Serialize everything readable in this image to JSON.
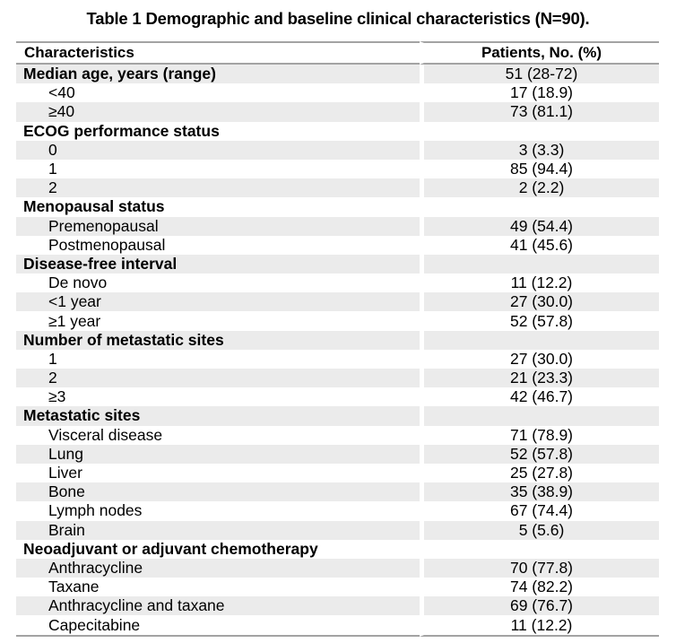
{
  "title": "Table 1 Demographic and baseline clinical characteristics (N=90).",
  "table": {
    "columns": {
      "characteristics": "Characteristics",
      "patients": "Patients, No. (%)"
    },
    "rows": [
      {
        "label": "Median age, years (range)",
        "value": "51 (28-72)",
        "style": "section"
      },
      {
        "label": "<40",
        "value": "17 (18.9)",
        "style": "item"
      },
      {
        "label": "≥40",
        "value": "73 (81.1)",
        "style": "item"
      },
      {
        "label": "ECOG performance status",
        "value": "",
        "style": "section"
      },
      {
        "label": "0",
        "value": "3 (3.3)",
        "style": "item"
      },
      {
        "label": "1",
        "value": "85 (94.4)",
        "style": "item"
      },
      {
        "label": "2",
        "value": "2 (2.2)",
        "style": "item"
      },
      {
        "label": "Menopausal status",
        "value": "",
        "style": "section"
      },
      {
        "label": "Premenopausal",
        "value": "49 (54.4)",
        "style": "item"
      },
      {
        "label": "Postmenopausal",
        "value": "41 (45.6)",
        "style": "item"
      },
      {
        "label": "Disease-free interval",
        "value": "",
        "style": "section"
      },
      {
        "label": "De novo",
        "value": "11 (12.2)",
        "style": "item"
      },
      {
        "label": "<1 year",
        "value": "27 (30.0)",
        "style": "item"
      },
      {
        "label": "≥1 year",
        "value": "52 (57.8)",
        "style": "item"
      },
      {
        "label": "Number of metastatic sites",
        "value": "",
        "style": "section"
      },
      {
        "label": "1",
        "value": "27 (30.0)",
        "style": "item"
      },
      {
        "label": "2",
        "value": "21 (23.3)",
        "style": "item"
      },
      {
        "label": "≥3",
        "value": "42 (46.7)",
        "style": "item"
      },
      {
        "label": "Metastatic sites",
        "value": "",
        "style": "section"
      },
      {
        "label": "Visceral disease",
        "value": "71 (78.9)",
        "style": "item"
      },
      {
        "label": "Lung",
        "value": "52 (57.8)",
        "style": "item"
      },
      {
        "label": "Liver",
        "value": "25 (27.8)",
        "style": "item"
      },
      {
        "label": "Bone",
        "value": "35 (38.9)",
        "style": "item"
      },
      {
        "label": "Lymph nodes",
        "value": "67 (74.4)",
        "style": "item"
      },
      {
        "label": "Brain",
        "value": "5 (5.6)",
        "style": "item"
      },
      {
        "label": "Neoadjuvant or adjuvant chemotherapy",
        "value": "",
        "style": "section"
      },
      {
        "label": "Anthracycline",
        "value": "70 (77.8)",
        "style": "item"
      },
      {
        "label": "Taxane",
        "value": "74 (82.2)",
        "style": "item"
      },
      {
        "label": "Anthracycline and taxane",
        "value": "69 (76.7)",
        "style": "item"
      },
      {
        "label": "Capecitabine",
        "value": "11 (12.2)",
        "style": "item"
      }
    ]
  },
  "colors": {
    "row_shade": "#ebebeb",
    "border": "#a3a3a3",
    "text": "#000000",
    "background": "#ffffff"
  }
}
